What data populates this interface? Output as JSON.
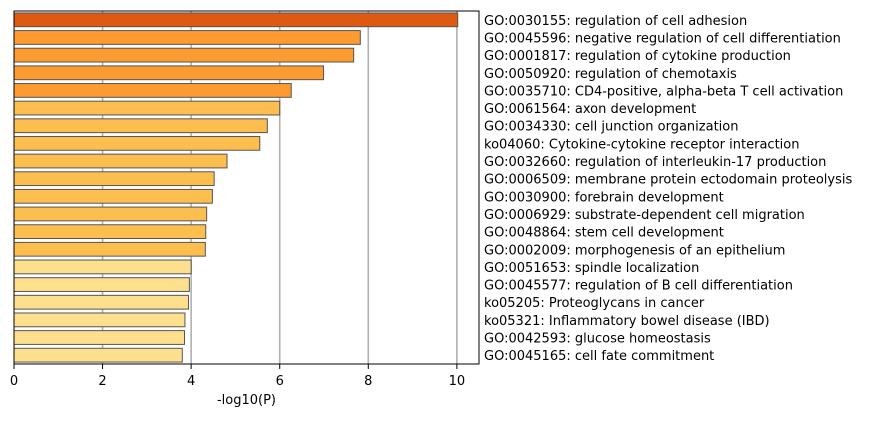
{
  "chart_data": {
    "type": "bar",
    "orientation": "horizontal",
    "xlabel": "-log10(P)",
    "ylabel": "",
    "xlim": [
      0,
      10.5
    ],
    "xticks": [
      0,
      2,
      4,
      6,
      8,
      10
    ],
    "grid": "vertical",
    "categories": [
      "GO:0030155: regulation of cell adhesion",
      "GO:0045596: negative regulation of cell differentiation",
      "GO:0001817: regulation of cytokine production",
      "GO:0050920: regulation of chemotaxis",
      "GO:0035710: CD4-positive, alpha-beta T cell activation",
      "GO:0061564: axon development",
      "GO:0034330: cell junction organization",
      "ko04060: Cytokine-cytokine receptor interaction",
      "GO:0032660: regulation of interleukin-17 production",
      "GO:0006509: membrane protein ectodomain proteolysis",
      "GO:0030900: forebrain development",
      "GO:0006929: substrate-dependent cell migration",
      "GO:0048864: stem cell development",
      "GO:0002009: morphogenesis of an epithelium",
      "GO:0051653: spindle localization",
      "GO:0045577: regulation of B cell differentiation",
      "ko05205: Proteoglycans in cancer",
      "ko05321: Inflammatory bowel disease (IBD)",
      "GO:0042593: glucose homeostasis",
      "GO:0045165: cell fate commitment"
    ],
    "values": [
      10.02,
      7.82,
      7.67,
      6.99,
      6.26,
      6.0,
      5.72,
      5.55,
      4.81,
      4.52,
      4.48,
      4.35,
      4.33,
      4.32,
      4.0,
      3.96,
      3.94,
      3.86,
      3.85,
      3.8
    ],
    "bar_colors": [
      "#dd5a10",
      "#fd9a30",
      "#fd9a30",
      "#fd9a30",
      "#fd9a30",
      "#fdbe50",
      "#fdbe50",
      "#fdbe50",
      "#fdbe50",
      "#fdbe50",
      "#fdbe50",
      "#fdbe50",
      "#fdbe50",
      "#fdbe50",
      "#fde08e",
      "#fde08e",
      "#fde08e",
      "#fde08e",
      "#fde08e",
      "#fde08e"
    ],
    "bar_edge_color": "#555555",
    "grid_color": "#b0b0b0"
  }
}
